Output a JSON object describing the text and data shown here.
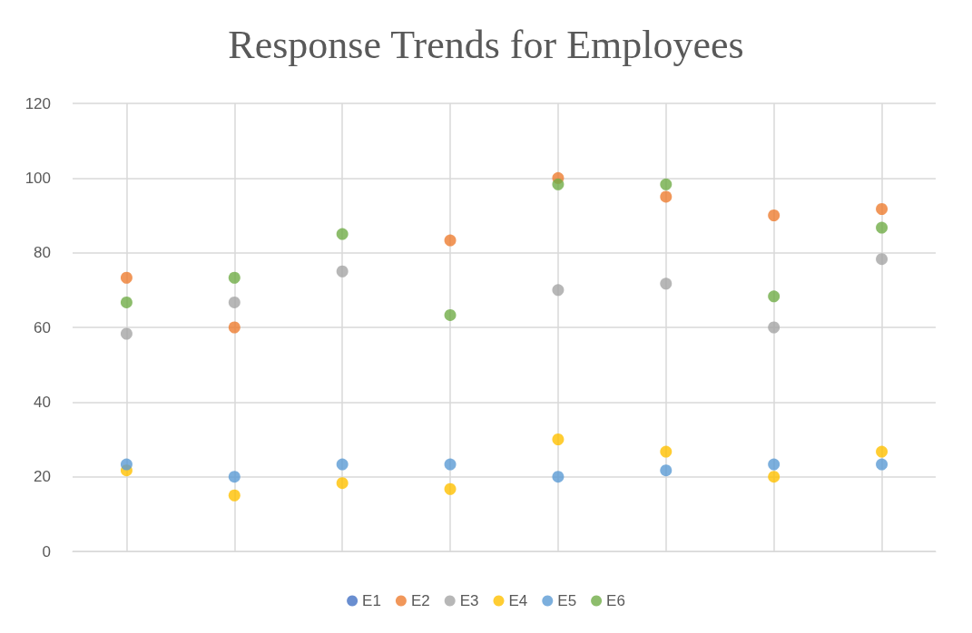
{
  "chart_data": {
    "type": "scatter",
    "title": "Response Trends for Employees",
    "categories": [
      null,
      null,
      null,
      null,
      null,
      null,
      null,
      null
    ],
    "series": [
      {
        "name": "E1",
        "color": "#4472c4",
        "values": [
          null,
          null,
          null,
          null,
          null,
          null,
          null,
          null
        ]
      },
      {
        "name": "E2",
        "color": "#ed7d31",
        "values": [
          73.3,
          60,
          null,
          83.3,
          100,
          95,
          90,
          91.7
        ]
      },
      {
        "name": "E3",
        "color": "#a5a5a5",
        "values": [
          58.3,
          66.7,
          75,
          null,
          70,
          71.7,
          60,
          78.3
        ]
      },
      {
        "name": "E4",
        "color": "#ffc000",
        "values": [
          21.7,
          15,
          18.3,
          16.7,
          30,
          26.7,
          20,
          26.7
        ]
      },
      {
        "name": "E5",
        "color": "#5b9bd5",
        "values": [
          23.3,
          20,
          23.3,
          23.3,
          20,
          21.7,
          23.3,
          23.3
        ]
      },
      {
        "name": "E6",
        "color": "#70ad47",
        "values": [
          66.7,
          73.3,
          85,
          63.3,
          98.3,
          98.3,
          68.3,
          86.7
        ]
      }
    ],
    "ylim": [
      0,
      120
    ],
    "yticks": [
      0,
      20,
      40,
      60,
      80,
      100,
      120
    ],
    "grid": true,
    "legend": "bottom",
    "marker": "circle"
  }
}
